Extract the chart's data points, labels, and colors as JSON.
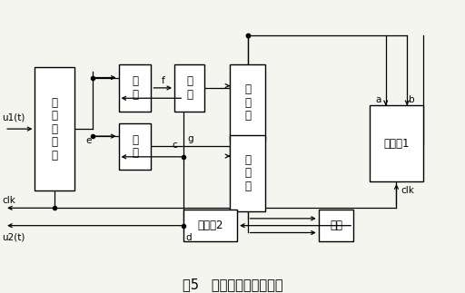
{
  "title": "图5   数字锁相环结构框图",
  "bg_color": "#f5f5f0",
  "lc": "#000000",
  "tc": "#000000",
  "fs": 8.5,
  "title_fs": 10.5,
  "blocks": {
    "edge": [
      0.075,
      0.35,
      0.085,
      0.42
    ],
    "and1": [
      0.255,
      0.62,
      0.07,
      0.16
    ],
    "not1": [
      0.375,
      0.62,
      0.065,
      0.16
    ],
    "suppress": [
      0.495,
      0.52,
      0.075,
      0.26
    ],
    "and2": [
      0.255,
      0.42,
      0.07,
      0.16
    ],
    "add": [
      0.495,
      0.28,
      0.075,
      0.26
    ],
    "or": [
      0.685,
      0.175,
      0.075,
      0.11
    ],
    "div2": [
      0.395,
      0.175,
      0.115,
      0.11
    ],
    "div1": [
      0.795,
      0.38,
      0.115,
      0.26
    ]
  },
  "block_labels": {
    "edge": "边\n沿\n检\n测\n器",
    "and1": "与\n门",
    "not1": "非\n门",
    "suppress": "扣\n除\n门",
    "and2": "与\n门",
    "add": "添\n加\n门",
    "or": "或门",
    "div2": "分频器2",
    "div1": "分频器1"
  }
}
